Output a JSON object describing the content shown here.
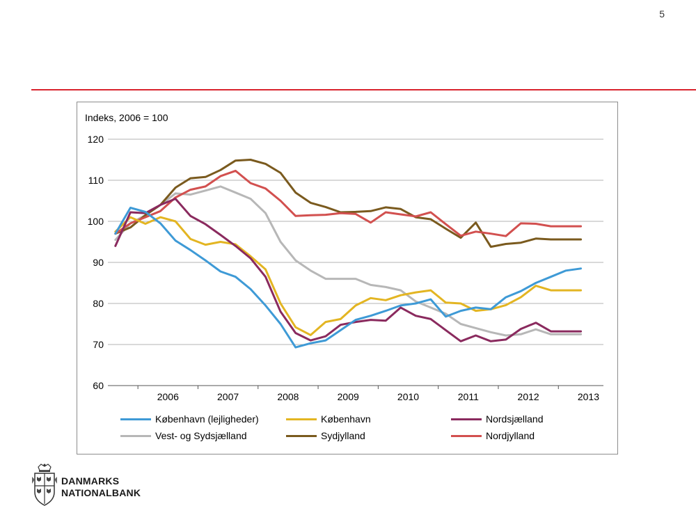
{
  "page": {
    "number": "5"
  },
  "brand": {
    "line1": "DANMARKS",
    "line2": "NATIONALBANK"
  },
  "colors": {
    "accent_rule": "#d9232d",
    "grid": "#b3b3b3"
  },
  "chart_data": {
    "type": "line",
    "title": "",
    "ylabel": "Indeks, 2006 = 100",
    "xlabel": "",
    "ylim": [
      60,
      120
    ],
    "yticks": [
      60,
      70,
      80,
      90,
      100,
      110,
      120
    ],
    "xlim": [
      2005.5,
      2013.75
    ],
    "categories": [
      "2006",
      "2007",
      "2008",
      "2009",
      "2010",
      "2011",
      "2012",
      "2013"
    ],
    "x": [
      2005.625,
      2005.875,
      2006.125,
      2006.375,
      2006.625,
      2006.875,
      2007.125,
      2007.375,
      2007.625,
      2007.875,
      2008.125,
      2008.375,
      2008.625,
      2008.875,
      2009.125,
      2009.375,
      2009.625,
      2009.875,
      2010.125,
      2010.375,
      2010.625,
      2010.875,
      2011.125,
      2011.375,
      2011.625,
      2011.875,
      2012.125,
      2012.375,
      2012.625,
      2012.875,
      2013.125,
      2013.375
    ],
    "series": [
      {
        "name": "København (lejligheder)",
        "color": "#3e9ad6",
        "values": [
          97,
          103.3,
          102.3,
          99.5,
          95.3,
          93,
          90.5,
          87.8,
          86.5,
          83.5,
          79.5,
          75,
          69.3,
          70.3,
          71,
          73.5,
          76,
          77,
          78.2,
          79.5,
          80,
          81,
          76.8,
          78.2,
          79,
          78.6,
          81.5,
          83,
          85,
          86.5,
          88,
          88.5
        ]
      },
      {
        "name": "København",
        "color": "#e3b522",
        "values": [
          97.5,
          101,
          99.4,
          101,
          100,
          95.7,
          94.3,
          95,
          94.4,
          91.5,
          88.3,
          80,
          74.2,
          72.3,
          75.5,
          76.2,
          79.5,
          81.3,
          80.8,
          82,
          82.7,
          83.2,
          80.2,
          80,
          78.2,
          78.6,
          79.6,
          81.5,
          84.3,
          83.2,
          83.2,
          83.2
        ]
      },
      {
        "name": "Nordsjælland",
        "color": "#8a2a5e",
        "values": [
          94,
          102.2,
          102,
          104,
          105.5,
          101.3,
          99.3,
          96.7,
          94,
          91,
          86.5,
          78,
          72.8,
          71,
          72,
          74.8,
          75.5,
          76,
          75.8,
          79,
          77,
          76.2,
          73.5,
          70.8,
          72.2,
          70.8,
          71.2,
          73.8,
          75.3,
          73.2,
          73.2,
          73.2
        ]
      },
      {
        "name": "Vest- og Sydsjælland",
        "color": "#b7b7b7",
        "values": [
          95.5,
          99.5,
          101.5,
          104,
          106.8,
          106.5,
          107.5,
          108.5,
          107,
          105.5,
          102,
          95,
          90.5,
          88,
          86,
          86,
          86,
          84.5,
          84,
          83.2,
          80.5,
          79,
          77.5,
          75,
          74,
          73,
          72.2,
          72.5,
          73.7,
          72.5,
          72.5,
          72.5
        ]
      },
      {
        "name": "Sydjylland",
        "color": "#7a5a1e",
        "values": [
          97,
          98.5,
          101.5,
          104,
          108.2,
          110.5,
          110.8,
          112.5,
          114.8,
          115,
          114,
          111.8,
          107,
          104.5,
          103.5,
          102.2,
          102.3,
          102.5,
          103.4,
          103,
          101,
          100.5,
          98.2,
          96,
          99.7,
          93.8,
          94.5,
          94.8,
          95.8,
          95.6,
          95.6,
          95.6
        ]
      },
      {
        "name": "Nordjylland",
        "color": "#d2504f",
        "values": [
          97,
          99.5,
          101,
          102.5,
          105.8,
          107.7,
          108.5,
          111,
          112.3,
          109.3,
          108,
          105,
          101.3,
          101.5,
          101.6,
          102,
          101.8,
          99.7,
          102.2,
          101.7,
          101.2,
          102.2,
          99.3,
          96.5,
          97.5,
          97,
          96.4,
          99.5,
          99.4,
          98.8,
          98.8,
          98.8
        ]
      }
    ]
  }
}
